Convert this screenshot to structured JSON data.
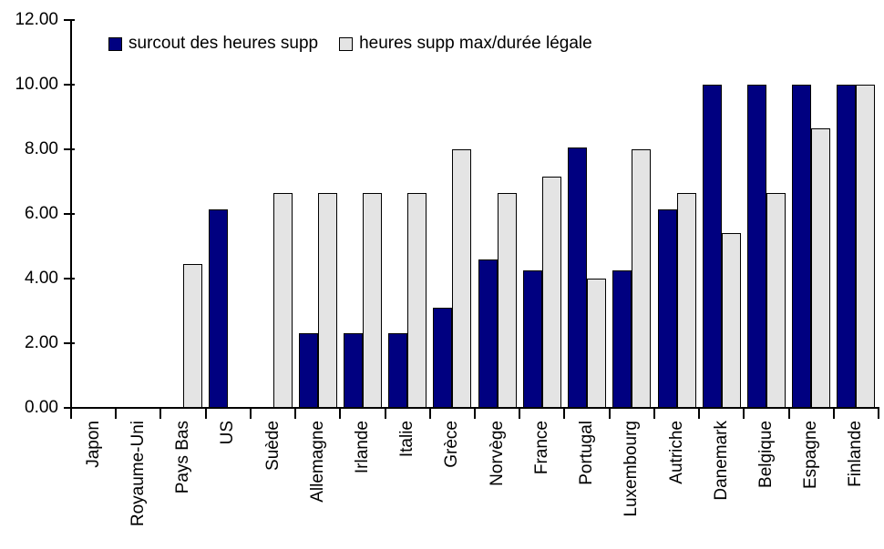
{
  "chart_data": {
    "type": "bar",
    "title": "",
    "xlabel": "",
    "ylabel": "",
    "categories": [
      "Japon",
      "Royaume-Uni",
      "Pays Bas",
      "US",
      "Suède",
      "Allemagne",
      "Irlande",
      "Italie",
      "Grèce",
      "Norvège",
      "France",
      "Portugal",
      "Luxembourg",
      "Autriche",
      "Danemark",
      "Belgique",
      "Espagne",
      "Finlande"
    ],
    "series": [
      {
        "name": "surcout des heures supp",
        "color": "#000080",
        "values": [
          0,
          0,
          0,
          6.15,
          0,
          2.3,
          2.3,
          2.3,
          3.1,
          4.6,
          4.25,
          8.05,
          4.25,
          6.15,
          10,
          10,
          10,
          10
        ]
      },
      {
        "name": "heures supp max/durée légale",
        "color": "#E4E4E4",
        "values": [
          0,
          0,
          4.45,
          0,
          6.65,
          6.65,
          6.65,
          6.65,
          8.0,
          6.65,
          7.15,
          4.0,
          8.0,
          6.65,
          5.4,
          6.65,
          8.65,
          10
        ]
      }
    ],
    "ylim": [
      0,
      12
    ],
    "ytick_step": 2,
    "ytick_labels": [
      "0.00",
      "2.00",
      "4.00",
      "6.00",
      "8.00",
      "10.00",
      "12.00"
    ],
    "grid": false,
    "legend_position": "top",
    "bar_border_color": "#000000",
    "axis_color": "#000000",
    "background_color": "#FFFFFF"
  }
}
